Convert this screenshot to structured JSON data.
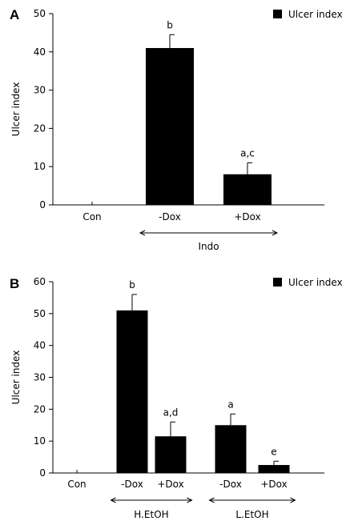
{
  "chart_data": [
    {
      "type": "bar",
      "panel_label": "A",
      "ylabel": "Ulcer index",
      "ylim": [
        0,
        50
      ],
      "yticks": [
        0,
        10,
        20,
        30,
        40,
        50
      ],
      "categories": [
        "Con",
        "-Dox",
        "+Dox"
      ],
      "series": [
        {
          "name": "Ulcer index",
          "values": [
            0,
            41,
            8
          ],
          "errors": [
            0.8,
            3.5,
            3
          ],
          "color": "#000000"
        }
      ],
      "annotations": [
        "",
        "b",
        "a,c"
      ],
      "groups": [
        {
          "label": "Indo",
          "from": 1,
          "to": 2
        }
      ],
      "legend": "top-right"
    },
    {
      "type": "bar",
      "panel_label": "B",
      "ylabel": "Ulcer index",
      "ylim": [
        0,
        60
      ],
      "yticks": [
        0,
        10,
        20,
        30,
        40,
        50,
        60
      ],
      "categories": [
        "Con",
        "-Dox",
        "+Dox",
        "-Dox",
        "+Dox"
      ],
      "series": [
        {
          "name": "Ulcer index",
          "values": [
            0,
            51,
            11.5,
            15,
            2.5
          ],
          "errors": [
            1,
            5,
            4.5,
            3.5,
            1.2
          ],
          "color": "#000000"
        }
      ],
      "annotations": [
        "",
        "b",
        "a,d",
        "a",
        "e"
      ],
      "groups": [
        {
          "label": "H.EtOH",
          "from": 1,
          "to": 2
        },
        {
          "label": "L.EtOH",
          "from": 3,
          "to": 4
        }
      ],
      "legend": "top-right"
    }
  ]
}
